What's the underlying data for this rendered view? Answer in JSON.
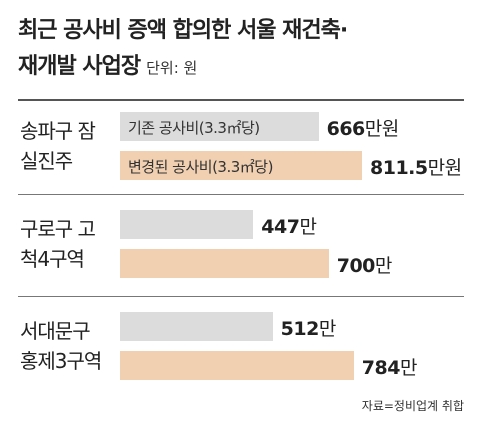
{
  "chart_data": {
    "type": "bar",
    "orientation": "horizontal",
    "title": [
      "최근 공사비 증액 합의한 서울 재건축·",
      "재개발 사업장"
    ],
    "subtitle": "단위: 원",
    "categories": [
      "송파구 잠실진주",
      "구로구 고척4구역",
      "서대문구 홍제3구역"
    ],
    "series": [
      {
        "name": "기존 공사비(3.3㎡당)",
        "color": "#dcdcdc",
        "values": [
          666,
          447,
          512
        ],
        "value_labels": [
          "666만원",
          "447만",
          "512만"
        ]
      },
      {
        "name": "변경된 공사비(3.3㎡당)",
        "color": "#f1d0b2",
        "values": [
          811.5,
          700,
          784
        ],
        "value_labels": [
          "811.5만원",
          "700만",
          "784만"
        ]
      }
    ],
    "source": "자료=정비업계 취합"
  }
}
